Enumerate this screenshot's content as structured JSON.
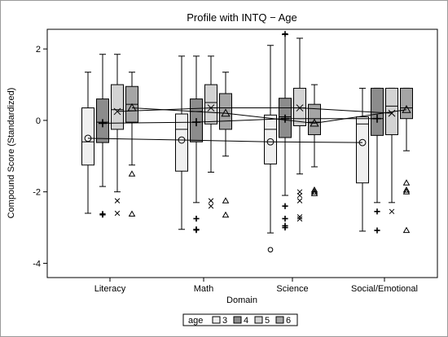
{
  "chart_data": {
    "type": "boxplot",
    "title": "Profile with INTQ − Age",
    "xlabel": "Domain",
    "ylabel": "Compound Score (Standardized)",
    "ylim": [
      -4.4,
      2.55
    ],
    "yticks": [
      -4,
      -2,
      0,
      2
    ],
    "grid": false,
    "categories": [
      "Literacy",
      "Math",
      "Science",
      "Social/Emotional"
    ],
    "legend": {
      "title": "age",
      "placement": "bottom-center",
      "entries": [
        {
          "label": "3",
          "color": "#f0f0f0"
        },
        {
          "label": "4",
          "color": "#8c8c8c"
        },
        {
          "label": "5",
          "color": "#d3d3d3"
        },
        {
          "label": "6",
          "color": "#a5a5a5"
        }
      ]
    },
    "series": [
      {
        "name": "3",
        "mean_symbol": "circle",
        "color": "#f0f0f0",
        "boxes": [
          {
            "whisker_low": -2.6,
            "q1": -1.25,
            "median": -0.6,
            "q3": 0.35,
            "whisker_high": 1.35,
            "mean": -0.5,
            "outliers": []
          },
          {
            "whisker_low": -3.05,
            "q1": -1.42,
            "median": -0.25,
            "q3": 0.18,
            "whisker_high": 1.8,
            "mean": -0.55,
            "outliers": []
          },
          {
            "whisker_low": -3.15,
            "q1": -1.22,
            "median": -0.25,
            "q3": 0.15,
            "whisker_high": 2.1,
            "mean": -0.6,
            "outliers": [
              {
                "y": -3.62,
                "marker": "circle"
              }
            ]
          },
          {
            "whisker_low": -3.1,
            "q1": -1.75,
            "median": -0.1,
            "q3": 0.1,
            "whisker_high": 0.9,
            "mean": -0.62,
            "outliers": []
          }
        ]
      },
      {
        "name": "4",
        "mean_symbol": "plus",
        "color": "#8c8c8c",
        "boxes": [
          {
            "whisker_low": -1.85,
            "q1": -0.62,
            "median": -0.05,
            "q3": 0.6,
            "whisker_high": 1.85,
            "mean": -0.08,
            "outliers": [
              {
                "y": -2.62,
                "marker": "plus"
              },
              {
                "y": -2.64,
                "marker": "plus"
              }
            ]
          },
          {
            "whisker_low": -2.3,
            "q1": -0.6,
            "median": 0.25,
            "q3": 0.6,
            "whisker_high": 1.8,
            "mean": -0.05,
            "outliers": [
              {
                "y": -2.75,
                "marker": "plus"
              },
              {
                "y": -3.05,
                "marker": "plus"
              },
              {
                "y": -3.07,
                "marker": "plus"
              }
            ]
          },
          {
            "whisker_low": -2.1,
            "q1": -0.48,
            "median": 0.1,
            "q3": 0.62,
            "whisker_high": 2.4,
            "mean": 0.05,
            "outliers": [
              {
                "y": -2.4,
                "marker": "plus"
              },
              {
                "y": -2.75,
                "marker": "plus"
              },
              {
                "y": -2.95,
                "marker": "plus"
              },
              {
                "y": -3.0,
                "marker": "plus"
              },
              {
                "y": 2.42,
                "marker": "plus"
              }
            ]
          },
          {
            "whisker_low": -2.3,
            "q1": -0.42,
            "median": 0.05,
            "q3": 0.9,
            "whisker_high": 0.9,
            "mean": 0.05,
            "outliers": [
              {
                "y": -2.55,
                "marker": "plus"
              },
              {
                "y": -3.08,
                "marker": "plus"
              }
            ]
          }
        ]
      },
      {
        "name": "5",
        "mean_symbol": "x",
        "color": "#d3d3d3",
        "boxes": [
          {
            "whisker_low": -2.0,
            "q1": -0.25,
            "median": 0.3,
            "q3": 1.0,
            "whisker_high": 1.85,
            "mean": 0.25,
            "outliers": [
              {
                "y": -2.25,
                "marker": "x"
              },
              {
                "y": -2.6,
                "marker": "x"
              }
            ]
          },
          {
            "whisker_low": -1.45,
            "q1": -0.1,
            "median": 0.5,
            "q3": 1.0,
            "whisker_high": 1.8,
            "mean": 0.35,
            "outliers": [
              {
                "y": -2.25,
                "marker": "x"
              },
              {
                "y": -2.4,
                "marker": "x"
              }
            ]
          },
          {
            "whisker_low": -1.5,
            "q1": -0.15,
            "median": 0.35,
            "q3": 0.9,
            "whisker_high": 2.3,
            "mean": 0.35,
            "outliers": [
              {
                "y": -2.0,
                "marker": "x"
              },
              {
                "y": -2.1,
                "marker": "x"
              },
              {
                "y": -2.25,
                "marker": "x"
              },
              {
                "y": -2.7,
                "marker": "x"
              },
              {
                "y": -2.76,
                "marker": "x"
              }
            ]
          },
          {
            "whisker_low": -2.3,
            "q1": -0.4,
            "median": 0.4,
            "q3": 0.9,
            "whisker_high": 0.9,
            "mean": 0.2,
            "outliers": [
              {
                "y": -2.55,
                "marker": "x"
              }
            ]
          }
        ]
      },
      {
        "name": "6",
        "mean_symbol": "triangle",
        "color": "#a5a5a5",
        "boxes": [
          {
            "whisker_low": -1.25,
            "q1": -0.05,
            "median": 0.45,
            "q3": 0.95,
            "whisker_high": 1.35,
            "mean": 0.35,
            "outliers": [
              {
                "y": -1.5,
                "marker": "triangle"
              },
              {
                "y": -2.62,
                "marker": "triangle"
              }
            ]
          },
          {
            "whisker_low": -1.0,
            "q1": -0.25,
            "median": 0.35,
            "q3": 0.75,
            "whisker_high": 1.35,
            "mean": 0.2,
            "outliers": [
              {
                "y": -2.25,
                "marker": "triangle"
              },
              {
                "y": -2.65,
                "marker": "triangle"
              }
            ]
          },
          {
            "whisker_low": -1.3,
            "q1": -0.4,
            "median": -0.05,
            "q3": 0.45,
            "whisker_high": 1.0,
            "mean": -0.08,
            "outliers": [
              {
                "y": -1.95,
                "marker": "triangle"
              },
              {
                "y": -2.0,
                "marker": "triangle"
              },
              {
                "y": -2.05,
                "marker": "triangle"
              }
            ]
          },
          {
            "whisker_low": -0.85,
            "q1": 0.05,
            "median": 0.35,
            "q3": 0.9,
            "whisker_high": 0.9,
            "mean": 0.3,
            "outliers": [
              {
                "y": -1.75,
                "marker": "triangle"
              },
              {
                "y": -1.95,
                "marker": "triangle"
              },
              {
                "y": -2.0,
                "marker": "triangle"
              },
              {
                "y": -3.08,
                "marker": "triangle"
              }
            ]
          }
        ]
      }
    ]
  }
}
